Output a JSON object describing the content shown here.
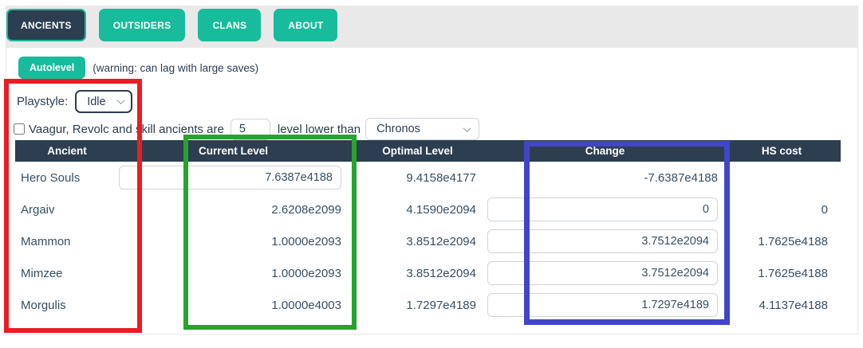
{
  "tabs": {
    "items": [
      {
        "label": "ANCIENTS",
        "active": true
      },
      {
        "label": "OUTSIDERS",
        "active": false
      },
      {
        "label": "CLANS",
        "active": false
      },
      {
        "label": "ABOUT",
        "active": false
      }
    ]
  },
  "autolevel": {
    "button_label": "Autolevel",
    "warning_text": "(warning: can lag with large saves)"
  },
  "playstyle": {
    "label": "Playstyle:",
    "selected": "Idle"
  },
  "skill_ancients": {
    "checkbox_label": "Vaagur, Revolc and skill ancients are",
    "levels_value": "5",
    "suffix_label": "level lower than",
    "ancient_selected": "Chronos"
  },
  "table": {
    "headers": [
      "Ancient",
      "Current Level",
      "Optimal Level",
      "Change",
      "HS cost"
    ],
    "rows": [
      {
        "name": "Hero Souls",
        "current": "7.6387e4188",
        "optimal": "9.4158e4177",
        "change": "-7.6387e4188",
        "hs_cost": ""
      },
      {
        "name": "Argaiv",
        "current": "2.6208e2099",
        "optimal": "4.1590e2094",
        "change": "0",
        "hs_cost": "0"
      },
      {
        "name": "Mammon",
        "current": "1.0000e2093",
        "optimal": "3.8512e2094",
        "change": "3.7512e2094",
        "hs_cost": "1.7625e4188"
      },
      {
        "name": "Mimzee",
        "current": "1.0000e2093",
        "optimal": "3.8512e2094",
        "change": "3.7512e2094",
        "hs_cost": "1.7625e4188"
      },
      {
        "name": "Morgulis",
        "current": "1.0000e4003",
        "optimal": "1.7297e4189",
        "change": "1.7297e4189",
        "hs_cost": "4.1137e4188"
      }
    ]
  },
  "annotations": {
    "red_box_color": "#ea1c24",
    "green_box_color": "#28a32e",
    "blue_box_color": "#4245c8"
  },
  "colors": {
    "accent_teal": "#18bc9c",
    "header_navy": "#2c3e50",
    "tabstrip_gray": "#e9e9e9"
  }
}
